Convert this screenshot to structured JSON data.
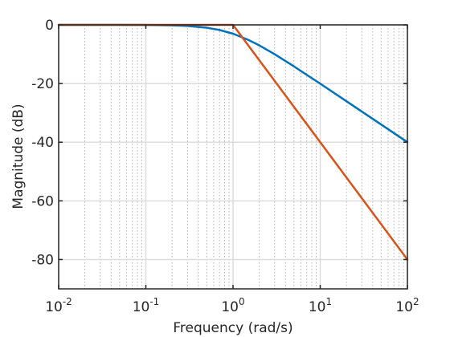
{
  "chart_data": {
    "type": "line",
    "xlabel": "Frequency (rad/s)",
    "ylabel": "Magnitude (dB)",
    "xscale": "log",
    "xlim": [
      0.01,
      100
    ],
    "ylim": [
      -90,
      0
    ],
    "grid": true,
    "x_ticks": [
      {
        "base": "10",
        "exp": "-2",
        "value": 0.01
      },
      {
        "base": "10",
        "exp": "-1",
        "value": 0.1
      },
      {
        "base": "10",
        "exp": "0",
        "value": 1
      },
      {
        "base": "10",
        "exp": "1",
        "value": 10
      },
      {
        "base": "10",
        "exp": "2",
        "value": 100
      }
    ],
    "y_ticks": [
      {
        "label": "0",
        "value": 0
      },
      {
        "label": "-20",
        "value": -20
      },
      {
        "label": "-40",
        "value": -40
      },
      {
        "label": "-60",
        "value": -60
      },
      {
        "label": "-80",
        "value": -80
      }
    ],
    "series": [
      {
        "color": "#0072BD",
        "x": [
          0.01,
          0.05,
          0.1,
          0.2,
          0.3,
          0.5,
          0.7,
          1,
          1.5,
          2,
          3,
          5,
          7,
          10,
          20,
          50,
          100
        ],
        "y": [
          0.0,
          -0.01,
          -0.04,
          -0.17,
          -0.37,
          -0.97,
          -1.74,
          -3.01,
          -5.13,
          -6.99,
          -10.0,
          -14.15,
          -17.03,
          -20.04,
          -26.03,
          -33.98,
          -40.0
        ]
      },
      {
        "color": "#D95319",
        "x": [
          0.01,
          1,
          100
        ],
        "y": [
          0,
          0,
          -80
        ]
      }
    ]
  }
}
